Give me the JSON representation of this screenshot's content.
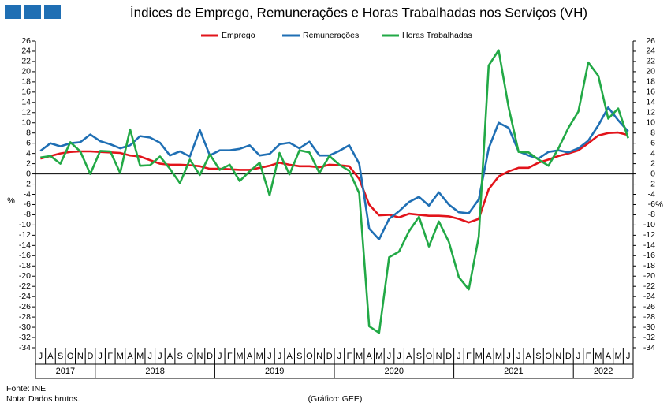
{
  "chart_data": {
    "type": "line",
    "title": "Índices de Emprego, Remunerações e Horas Trabalhadas nos Serviços (VH)",
    "y_label": "%",
    "y2_label": "%",
    "categories": [
      "J",
      "A",
      "S",
      "O",
      "N",
      "D",
      "J",
      "F",
      "M",
      "A",
      "M",
      "J",
      "J",
      "A",
      "S",
      "O",
      "N",
      "D",
      "J",
      "F",
      "M",
      "A",
      "M",
      "J",
      "J",
      "A",
      "S",
      "O",
      "N",
      "D",
      "J",
      "F",
      "M",
      "A",
      "M",
      "J",
      "J",
      "A",
      "S",
      "O",
      "N",
      "D",
      "J",
      "F",
      "M",
      "A",
      "M",
      "J",
      "J",
      "A",
      "S",
      "O",
      "N",
      "D",
      "J",
      "F",
      "M",
      "A",
      "M",
      "J"
    ],
    "years": [
      "2017",
      "2018",
      "2019",
      "2020",
      "2021",
      "2022"
    ],
    "series": [
      {
        "name": "Emprego",
        "color": "#e2141b",
        "values": [
          3.0,
          3.5,
          4.0,
          4.3,
          4.4,
          4.4,
          4.3,
          4.2,
          4.1,
          3.6,
          3.4,
          2.7,
          2.0,
          1.8,
          1.8,
          1.7,
          1.5,
          1.0,
          1.0,
          0.9,
          0.8,
          0.8,
          1.2,
          1.6,
          2.2,
          1.8,
          1.5,
          1.5,
          1.3,
          1.8,
          1.7,
          1.5,
          -1.0,
          -6.0,
          -8.1,
          -8.0,
          -8.5,
          -7.8,
          -8.0,
          -8.2,
          -8.2,
          -8.3,
          -8.8,
          -9.5,
          -8.8,
          -3.0,
          -0.5,
          0.5,
          1.2,
          1.2,
          2.2,
          2.8,
          3.5,
          4.0,
          4.6,
          6.0,
          7.5,
          8.0,
          8.1,
          7.6
        ]
      },
      {
        "name": "Remunerações",
        "color": "#1f6fb4",
        "values": [
          4.5,
          6.0,
          5.4,
          6.0,
          6.2,
          7.7,
          6.4,
          5.8,
          5.0,
          5.6,
          7.4,
          7.1,
          6.1,
          3.6,
          4.4,
          3.4,
          8.6,
          3.6,
          4.6,
          4.6,
          4.9,
          5.6,
          3.6,
          3.9,
          5.8,
          6.1,
          5.0,
          6.3,
          3.6,
          3.6,
          4.5,
          5.6,
          2.0,
          -10.7,
          -12.8,
          -8.8,
          -7.3,
          -5.5,
          -4.5,
          -6.2,
          -3.6,
          -6.0,
          -7.5,
          -7.7,
          -5.0,
          5.0,
          10.0,
          9.0,
          4.4,
          3.6,
          3.0,
          4.3,
          4.6,
          4.2,
          5.0,
          6.5,
          9.5,
          13.0,
          10.5,
          8.3
        ]
      },
      {
        "name": "Horas Trabalhadas",
        "color": "#22a946",
        "values": [
          3.2,
          3.5,
          2.0,
          6.2,
          4.4,
          0.0,
          4.5,
          4.4,
          0.2,
          8.7,
          1.6,
          1.7,
          3.4,
          1.0,
          -1.8,
          2.8,
          -0.2,
          3.8,
          0.8,
          1.8,
          -1.4,
          0.5,
          2.2,
          -4.2,
          4.1,
          -0.1,
          4.6,
          4.2,
          0.2,
          3.5,
          1.8,
          0.6,
          -3.8,
          -29.8,
          -31.1,
          -16.3,
          -15.2,
          -11.2,
          -8.4,
          -14.2,
          -9.3,
          -13.3,
          -20.2,
          -22.6,
          -12.3,
          21.2,
          24.2,
          13.0,
          4.3,
          4.2,
          2.8,
          1.6,
          5.0,
          9.0,
          12.2,
          21.8,
          19.2,
          10.8,
          12.8,
          7.0
        ]
      }
    ],
    "ylim": [
      -34,
      26
    ],
    "yticks": [
      -34,
      -32,
      -30,
      -28,
      -26,
      -24,
      -22,
      -20,
      -18,
      -16,
      -14,
      -12,
      -10,
      -8,
      -6,
      -4,
      -2,
      0,
      2,
      4,
      6,
      8,
      10,
      12,
      14,
      16,
      18,
      20,
      22,
      24,
      26
    ],
    "y2lim": [
      -34,
      26
    ],
    "y2ticks": [
      -34,
      -32,
      -30,
      -28,
      -26,
      -24,
      -22,
      -20,
      -18,
      -16,
      -14,
      -12,
      -10,
      -8,
      -6,
      -4,
      -2,
      0,
      2,
      4,
      6,
      8,
      10,
      12,
      14,
      16,
      18,
      20,
      22,
      24,
      26
    ],
    "legend": "top",
    "source": "Fonte: INE",
    "note": "Nota: Dados brutos.",
    "credit": "(Gráfico: GEE)"
  }
}
